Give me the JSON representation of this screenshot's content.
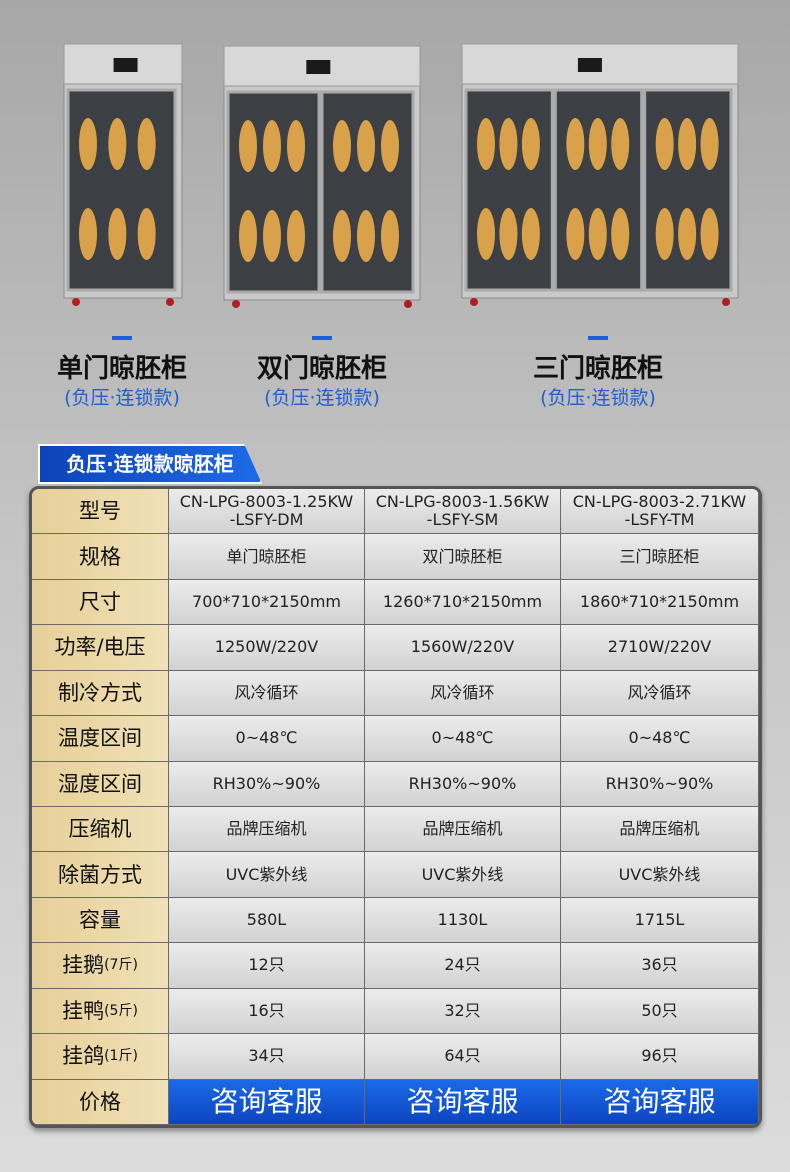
{
  "products": [
    {
      "name": "单门晾胚柜",
      "subtitle": "(负压·连锁款)"
    },
    {
      "name": "双门晾胚柜",
      "subtitle": "(负压·连锁款)"
    },
    {
      "name": "三门晾胚柜",
      "subtitle": "(负压·连锁款)"
    }
  ],
  "table": {
    "title": "负压·连锁款晾胚柜",
    "rows": [
      {
        "label": "型号",
        "cells": [
          [
            "CN-LPG-8003-1.25KW",
            "-LSFY-DM"
          ],
          [
            "CN-LPG-8003-1.56KW",
            "-LSFY-SM"
          ],
          [
            "CN-LPG-8003-2.71KW",
            "-LSFY-TM"
          ]
        ]
      },
      {
        "label": "规格",
        "cells": [
          "单门晾胚柜",
          "双门晾胚柜",
          "三门晾胚柜"
        ]
      },
      {
        "label": "尺寸",
        "cells": [
          "700*710*2150mm",
          "1260*710*2150mm",
          "1860*710*2150mm"
        ]
      },
      {
        "label": "功率/电压",
        "cells": [
          "1250W/220V",
          "1560W/220V",
          "2710W/220V"
        ]
      },
      {
        "label": "制冷方式",
        "cells": [
          "风冷循环",
          "风冷循环",
          "风冷循环"
        ]
      },
      {
        "label": "温度区间",
        "cells": [
          "0~48℃",
          "0~48℃",
          "0~48℃"
        ]
      },
      {
        "label": "湿度区间",
        "cells": [
          "RH30%~90%",
          "RH30%~90%",
          "RH30%~90%"
        ]
      },
      {
        "label": "压缩机",
        "cells": [
          "品牌压缩机",
          "品牌压缩机",
          "品牌压缩机"
        ]
      },
      {
        "label": "除菌方式",
        "cells": [
          "UVC紫外线",
          "UVC紫外线",
          "UVC紫外线"
        ]
      },
      {
        "label": "容量",
        "cells": [
          "580L",
          "1130L",
          "1715L"
        ]
      },
      {
        "label": "挂鹅",
        "note": "(7斤)",
        "cells": [
          "12只",
          "24只",
          "36只"
        ]
      },
      {
        "label": "挂鸭",
        "note": "(5斤)",
        "cells": [
          "16只",
          "32只",
          "50只"
        ]
      },
      {
        "label": "挂鸽",
        "note": "(1斤)",
        "cells": [
          "34只",
          "64只",
          "96只"
        ]
      },
      {
        "label": "价格",
        "cells": [
          "咨询客服",
          "咨询客服",
          "咨询客服"
        ],
        "highlight": true
      }
    ]
  }
}
